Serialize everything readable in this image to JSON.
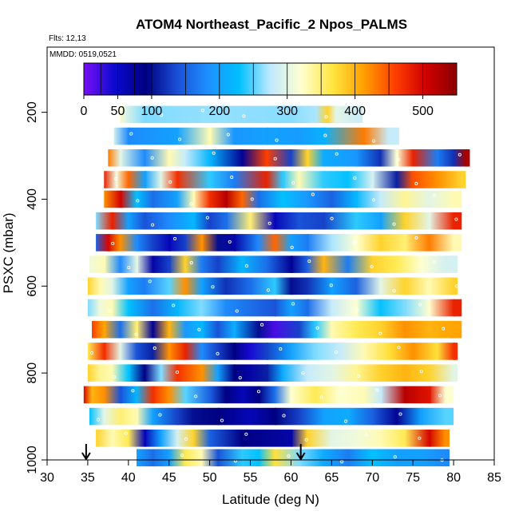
{
  "chart_data": {
    "type": "heatmap",
    "title": "ATOM4 Northeast_Pacific_2 Npos_PALMS",
    "annotations": [
      "Flts: 12,13",
      "MMDD: 0519,0521"
    ],
    "xlabel": "Latitude (deg N)",
    "ylabel": "PSXC (mbar)",
    "xlim": [
      30,
      85
    ],
    "ylim": [
      1000,
      50
    ],
    "x_ticks": [
      30,
      35,
      40,
      45,
      50,
      55,
      60,
      65,
      70,
      75,
      80,
      85
    ],
    "y_ticks": [
      200,
      400,
      600,
      800,
      1000
    ],
    "colorbar": {
      "range": [
        0,
        550
      ],
      "ticks": [
        0,
        50,
        100,
        200,
        300,
        400,
        500
      ],
      "colors": [
        "#7a10f5",
        "#0a0ad0",
        "#000080",
        "#1a4fd6",
        "#1e90ff",
        "#00c0ff",
        "#bfe9ff",
        "#ffffd0",
        "#ffe640",
        "#ffa000",
        "#ff4000",
        "#d00000",
        "#8b0000"
      ]
    },
    "arrows_at_latitude": [
      34.8,
      61.2
    ],
    "rows": [
      {
        "p": 205,
        "x0": 39.0,
        "x1": 68.8,
        "stops": [
          [
            39.0,
            330
          ],
          [
            39.5,
            300
          ],
          [
            42,
            260
          ],
          [
            50,
            265
          ],
          [
            60,
            262
          ],
          [
            63,
            270
          ],
          [
            64.5,
            380
          ],
          [
            65.5,
            300
          ],
          [
            68,
            285
          ]
        ]
      },
      {
        "p": 255,
        "x0": 38.2,
        "x1": 73.3,
        "stops": [
          [
            38.2,
            290
          ],
          [
            40,
            180
          ],
          [
            46,
            200
          ],
          [
            50,
            330
          ],
          [
            53,
            190
          ],
          [
            57,
            200
          ],
          [
            61,
            195
          ],
          [
            64,
            215
          ],
          [
            69,
            430
          ],
          [
            72,
            280
          ]
        ]
      },
      {
        "p": 305,
        "x0": 37.5,
        "x1": 82.0,
        "stops": [
          [
            37.5,
            430
          ],
          [
            39,
            300
          ],
          [
            42,
            180
          ],
          [
            45,
            330
          ],
          [
            47,
            280
          ],
          [
            50,
            220
          ],
          [
            54,
            80
          ],
          [
            57,
            460
          ],
          [
            60,
            130
          ],
          [
            62,
            380
          ],
          [
            64,
            210
          ],
          [
            68,
            190
          ],
          [
            71,
            120
          ],
          [
            73,
            320
          ],
          [
            75,
            480
          ],
          [
            78,
            170
          ],
          [
            80,
            120
          ],
          [
            81.5,
            530
          ]
        ]
      },
      {
        "p": 355,
        "x0": 37.0,
        "x1": 81.5,
        "stops": [
          [
            37,
            480
          ],
          [
            38.5,
            310
          ],
          [
            40,
            440
          ],
          [
            42,
            200
          ],
          [
            44,
            300
          ],
          [
            46,
            470
          ],
          [
            50,
            240
          ],
          [
            53,
            170
          ],
          [
            57,
            480
          ],
          [
            59,
            240
          ],
          [
            61,
            330
          ],
          [
            64,
            240
          ],
          [
            67,
            230
          ],
          [
            70,
            290
          ],
          [
            73,
            110
          ],
          [
            75,
            450
          ],
          [
            78,
            420
          ],
          [
            81,
            380
          ]
        ]
      },
      {
        "p": 400,
        "x0": 37.0,
        "x1": 81.0,
        "stops": [
          [
            37,
            420
          ],
          [
            39,
            500
          ],
          [
            41,
            230
          ],
          [
            43,
            160
          ],
          [
            46,
            200
          ],
          [
            48,
            330
          ],
          [
            50,
            470
          ],
          [
            52,
            520
          ],
          [
            54,
            440
          ],
          [
            56,
            160
          ],
          [
            59,
            230
          ],
          [
            62,
            190
          ],
          [
            65,
            150
          ],
          [
            68,
            220
          ],
          [
            71,
            280
          ],
          [
            74,
            340
          ],
          [
            77,
            300
          ],
          [
            80,
            330
          ]
        ]
      },
      {
        "p": 450,
        "x0": 36.0,
        "x1": 81.0,
        "stops": [
          [
            36,
            260
          ],
          [
            38,
            480
          ],
          [
            40,
            200
          ],
          [
            42,
            140
          ],
          [
            45,
            180
          ],
          [
            48,
            220
          ],
          [
            50,
            130
          ],
          [
            52,
            160
          ],
          [
            55,
            350
          ],
          [
            58,
            60
          ],
          [
            61,
            140
          ],
          [
            64,
            130
          ],
          [
            68,
            240
          ],
          [
            71,
            200
          ],
          [
            74,
            380
          ],
          [
            77,
            300
          ],
          [
            80,
            480
          ]
        ]
      },
      {
        "p": 500,
        "x0": 36.0,
        "x1": 81.0,
        "stops": [
          [
            36,
            150
          ],
          [
            37.5,
            500
          ],
          [
            39,
            420
          ],
          [
            41,
            180
          ],
          [
            43,
            130
          ],
          [
            45,
            60
          ],
          [
            47,
            130
          ],
          [
            49,
            420
          ],
          [
            51,
            100
          ],
          [
            53,
            70
          ],
          [
            56,
            180
          ],
          [
            58,
            440
          ],
          [
            60,
            200
          ],
          [
            62,
            170
          ],
          [
            65,
            270
          ],
          [
            68,
            320
          ],
          [
            71,
            380
          ],
          [
            74,
            350
          ],
          [
            77,
            430
          ],
          [
            80,
            330
          ]
        ]
      },
      {
        "p": 550,
        "x0": 35.2,
        "x1": 80.5,
        "stops": [
          [
            35.2,
            310
          ],
          [
            37,
            330
          ],
          [
            39,
            180
          ],
          [
            41,
            300
          ],
          [
            43,
            70
          ],
          [
            45,
            130
          ],
          [
            47,
            380
          ],
          [
            49,
            170
          ],
          [
            51,
            130
          ],
          [
            54,
            220
          ],
          [
            57,
            160
          ],
          [
            60,
            80
          ],
          [
            62,
            150
          ],
          [
            64,
            400
          ],
          [
            67,
            170
          ],
          [
            70,
            380
          ],
          [
            73,
            360
          ],
          [
            76,
            320
          ],
          [
            79,
            290
          ]
        ]
      },
      {
        "p": 600,
        "x0": 35.0,
        "x1": 80.5,
        "stops": [
          [
            35,
            380
          ],
          [
            36.5,
            330
          ],
          [
            38,
            300
          ],
          [
            40,
            200
          ],
          [
            42,
            170
          ],
          [
            45,
            250
          ],
          [
            47,
            420
          ],
          [
            49,
            200
          ],
          [
            52,
            120
          ],
          [
            55,
            160
          ],
          [
            58,
            240
          ],
          [
            60,
            100
          ],
          [
            62,
            120
          ],
          [
            65,
            200
          ],
          [
            68,
            150
          ],
          [
            71,
            300
          ],
          [
            74,
            380
          ],
          [
            77,
            330
          ],
          [
            80,
            380
          ]
        ]
      },
      {
        "p": 650,
        "x0": 35.0,
        "x1": 81.0,
        "stops": [
          [
            35,
            260
          ],
          [
            36.5,
            310
          ],
          [
            38,
            330
          ],
          [
            40,
            230
          ],
          [
            43,
            160
          ],
          [
            46,
            220
          ],
          [
            49,
            260
          ],
          [
            52,
            180
          ],
          [
            55,
            160
          ],
          [
            58,
            140
          ],
          [
            60,
            200
          ],
          [
            62,
            160
          ],
          [
            65,
            280
          ],
          [
            68,
            320
          ],
          [
            71,
            230
          ],
          [
            74,
            260
          ],
          [
            77,
            320
          ],
          [
            80,
            480
          ]
        ]
      },
      {
        "p": 700,
        "x0": 35.5,
        "x1": 81.0,
        "stops": [
          [
            35.5,
            460
          ],
          [
            37,
            410
          ],
          [
            39,
            160
          ],
          [
            41,
            350
          ],
          [
            43,
            80
          ],
          [
            45,
            400
          ],
          [
            47,
            190
          ],
          [
            49,
            220
          ],
          [
            51,
            140
          ],
          [
            53,
            210
          ],
          [
            56,
            100
          ],
          [
            58,
            20
          ],
          [
            61,
            130
          ],
          [
            63,
            240
          ],
          [
            65,
            330
          ],
          [
            68,
            360
          ],
          [
            71,
            380
          ],
          [
            74,
            420
          ],
          [
            77,
            400
          ],
          [
            80,
            410
          ]
        ]
      },
      {
        "p": 750,
        "x0": 35.0,
        "x1": 80.5,
        "stops": [
          [
            35,
            360
          ],
          [
            37,
            470
          ],
          [
            39,
            300
          ],
          [
            41,
            140
          ],
          [
            43,
            110
          ],
          [
            45,
            420
          ],
          [
            47,
            480
          ],
          [
            49,
            180
          ],
          [
            51,
            130
          ],
          [
            53,
            90
          ],
          [
            55,
            40
          ],
          [
            57,
            130
          ],
          [
            60,
            200
          ],
          [
            63,
            260
          ],
          [
            66,
            280
          ],
          [
            69,
            330
          ],
          [
            72,
            370
          ],
          [
            75,
            420
          ],
          [
            78,
            370
          ],
          [
            80,
            470
          ]
        ]
      },
      {
        "p": 800,
        "x0": 35.0,
        "x1": 80.5,
        "stops": [
          [
            35,
            380
          ],
          [
            36.5,
            340
          ],
          [
            38,
            330
          ],
          [
            40,
            230
          ],
          [
            42,
            90
          ],
          [
            44,
            260
          ],
          [
            46,
            470
          ],
          [
            49,
            420
          ],
          [
            51,
            200
          ],
          [
            53,
            90
          ],
          [
            55,
            70
          ],
          [
            57,
            110
          ],
          [
            59,
            210
          ],
          [
            62,
            280
          ],
          [
            65,
            300
          ],
          [
            68,
            340
          ],
          [
            71,
            380
          ],
          [
            74,
            400
          ],
          [
            77,
            380
          ],
          [
            80,
            300
          ]
        ]
      },
      {
        "p": 850,
        "x0": 34.5,
        "x1": 80.0,
        "stops": [
          [
            34.5,
            500
          ],
          [
            35.5,
            400
          ],
          [
            37,
            420
          ],
          [
            39,
            140
          ],
          [
            41,
            220
          ],
          [
            43,
            470
          ],
          [
            45,
            420
          ],
          [
            47,
            250
          ],
          [
            50,
            150
          ],
          [
            52,
            90
          ],
          [
            54,
            60
          ],
          [
            56,
            90
          ],
          [
            58,
            160
          ],
          [
            60,
            320
          ],
          [
            63,
            360
          ],
          [
            66,
            320
          ],
          [
            69,
            330
          ],
          [
            71,
            280
          ],
          [
            74,
            520
          ],
          [
            77,
            490
          ],
          [
            79,
            320
          ]
        ]
      },
      {
        "p": 900,
        "x0": 35.2,
        "x1": 80.0,
        "stops": [
          [
            35.2,
            230
          ],
          [
            37,
            300
          ],
          [
            39,
            350
          ],
          [
            41,
            330
          ],
          [
            43,
            200
          ],
          [
            46,
            130
          ],
          [
            48,
            100
          ],
          [
            51,
            90
          ],
          [
            55,
            60
          ],
          [
            58,
            90
          ],
          [
            61,
            130
          ],
          [
            64,
            200
          ],
          [
            67,
            210
          ],
          [
            70,
            150
          ],
          [
            73,
            80
          ],
          [
            76,
            200
          ],
          [
            79,
            250
          ]
        ]
      },
      {
        "p": 950,
        "x0": 36.0,
        "x1": 79.5,
        "stops": [
          [
            36,
            380
          ],
          [
            38,
            330
          ],
          [
            40,
            360
          ],
          [
            42,
            60
          ],
          [
            44,
            200
          ],
          [
            46,
            290
          ],
          [
            48,
            380
          ],
          [
            50,
            150
          ],
          [
            52,
            120
          ],
          [
            54,
            90
          ],
          [
            57,
            80
          ],
          [
            60,
            70
          ],
          [
            62,
            380
          ],
          [
            65,
            300
          ],
          [
            68,
            310
          ],
          [
            71,
            330
          ],
          [
            74,
            360
          ],
          [
            77,
            500
          ],
          [
            79,
            420
          ]
        ]
      },
      {
        "p": 995,
        "x0": 41.0,
        "x1": 79.5,
        "stops": [
          [
            41,
            200
          ],
          [
            43,
            160
          ],
          [
            45,
            200
          ],
          [
            47,
            360
          ],
          [
            49,
            330
          ],
          [
            51,
            140
          ],
          [
            54,
            240
          ],
          [
            56,
            230
          ],
          [
            58,
            370
          ],
          [
            61,
            260
          ],
          [
            64,
            210
          ],
          [
            67,
            170
          ],
          [
            70,
            230
          ],
          [
            73,
            200
          ],
          [
            76,
            200
          ],
          [
            79,
            180
          ]
        ]
      }
    ]
  }
}
